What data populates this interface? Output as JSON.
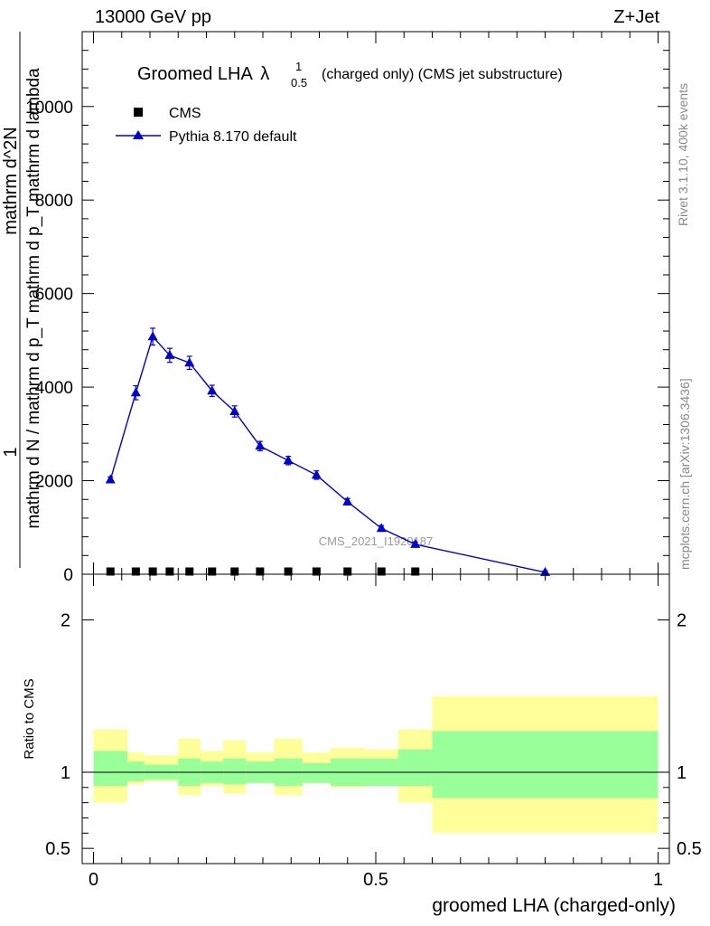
{
  "header": {
    "left": "13000 GeV pp",
    "right": "Z+Jet"
  },
  "side_labels": {
    "rivet": "Rivet 3.1.10,  400k events",
    "mcplots": "mcplots.cern.ch [arXiv:1306.3436]"
  },
  "chart_data": [
    {
      "type": "line",
      "title": "Groomed LHA",
      "title_symbol": "λ",
      "title_sup": "1",
      "title_sub": "0.5",
      "subtitle": "(charged only) (CMS jet substructure)",
      "ylabel_num": "1",
      "ylabel_den": "mathrm d N / mathrm d p_T mathrm d p_T mathrm d lambda",
      "ylabel_num_den": "mathrm d^2N",
      "watermark": "CMS_2021_I1920187",
      "xlim": [
        -0.02,
        1.02
      ],
      "ylim": [
        0,
        11600
      ],
      "yticks": [
        0,
        2000,
        4000,
        6000,
        8000,
        10000
      ],
      "ytick_labels": [
        "0",
        "2000",
        "4000",
        "6000",
        "8000",
        "10000"
      ],
      "legend": {
        "position": "top-left",
        "entries": [
          "CMS",
          "Pythia 8.170 default"
        ]
      },
      "series": [
        {
          "name": "CMS",
          "marker": "square",
          "color": "#000000",
          "x": [
            0.03,
            0.075,
            0.105,
            0.135,
            0.17,
            0.21,
            0.25,
            0.295,
            0.345,
            0.395,
            0.45,
            0.51,
            0.57
          ],
          "y": [
            10,
            10,
            10,
            10,
            10,
            10,
            10,
            10,
            10,
            10,
            10,
            10,
            10
          ]
        },
        {
          "name": "Pythia 8.170 default",
          "marker": "triangle",
          "color": "#0000cc",
          "x": [
            0.03,
            0.075,
            0.105,
            0.135,
            0.17,
            0.21,
            0.25,
            0.295,
            0.345,
            0.395,
            0.45,
            0.51,
            0.57,
            0.8
          ],
          "y": [
            2020,
            3880,
            5080,
            4680,
            4520,
            3920,
            3480,
            2740,
            2430,
            2120,
            1550,
            980,
            640,
            40
          ],
          "yerr": [
            60,
            150,
            180,
            150,
            140,
            120,
            120,
            100,
            90,
            90,
            70,
            60,
            50,
            30
          ]
        }
      ]
    },
    {
      "type": "area",
      "ylabel": "Ratio to CMS",
      "xlabel": "groomed LHA (charged-only)",
      "xlim": [
        -0.02,
        1.02
      ],
      "ylim": [
        0.4,
        2.3
      ],
      "xticks": [
        0,
        0.5,
        1
      ],
      "xtick_labels": [
        "0",
        "0.5",
        "1"
      ],
      "yticks": [
        0.5,
        1,
        2
      ],
      "ytick_labels": [
        "0.5",
        "1",
        "2"
      ],
      "band_colors": {
        "inner": "#99ff99",
        "outer": "#ffff99"
      },
      "bins": [
        {
          "lo": 0.0,
          "hi": 0.06,
          "inner": [
            0.91,
            1.14
          ],
          "outer": [
            0.8,
            1.28
          ]
        },
        {
          "lo": 0.06,
          "hi": 0.09,
          "inner": [
            0.94,
            1.07
          ],
          "outer": [
            0.92,
            1.13
          ]
        },
        {
          "lo": 0.09,
          "hi": 0.12,
          "inner": [
            0.95,
            1.05
          ],
          "outer": [
            0.94,
            1.11
          ]
        },
        {
          "lo": 0.12,
          "hi": 0.15,
          "inner": [
            0.95,
            1.05
          ],
          "outer": [
            0.94,
            1.11
          ]
        },
        {
          "lo": 0.15,
          "hi": 0.19,
          "inner": [
            0.91,
            1.09
          ],
          "outer": [
            0.85,
            1.22
          ]
        },
        {
          "lo": 0.19,
          "hi": 0.23,
          "inner": [
            0.93,
            1.07
          ],
          "outer": [
            0.91,
            1.14
          ]
        },
        {
          "lo": 0.23,
          "hi": 0.27,
          "inner": [
            0.92,
            1.09
          ],
          "outer": [
            0.86,
            1.21
          ]
        },
        {
          "lo": 0.27,
          "hi": 0.32,
          "inner": [
            0.93,
            1.07
          ],
          "outer": [
            0.93,
            1.13
          ]
        },
        {
          "lo": 0.32,
          "hi": 0.37,
          "inner": [
            0.91,
            1.09
          ],
          "outer": [
            0.85,
            1.22
          ]
        },
        {
          "lo": 0.37,
          "hi": 0.42,
          "inner": [
            0.93,
            1.06
          ],
          "outer": [
            0.93,
            1.13
          ]
        },
        {
          "lo": 0.42,
          "hi": 0.48,
          "inner": [
            0.91,
            1.09
          ],
          "outer": [
            0.9,
            1.16
          ]
        },
        {
          "lo": 0.48,
          "hi": 0.54,
          "inner": [
            0.91,
            1.09
          ],
          "outer": [
            0.91,
            1.15
          ]
        },
        {
          "lo": 0.54,
          "hi": 0.6,
          "inner": [
            0.91,
            1.15
          ],
          "outer": [
            0.8,
            1.28
          ]
        },
        {
          "lo": 0.6,
          "hi": 1.0,
          "inner": [
            0.83,
            1.27
          ],
          "outer": [
            0.6,
            1.5
          ]
        }
      ],
      "reference_line": 1
    }
  ]
}
